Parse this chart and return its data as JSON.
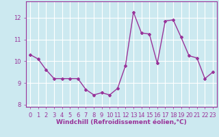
{
  "x": [
    0,
    1,
    2,
    3,
    4,
    5,
    6,
    7,
    8,
    9,
    10,
    11,
    12,
    13,
    14,
    15,
    16,
    17,
    18,
    19,
    20,
    21,
    22,
    23
  ],
  "y": [
    10.3,
    10.1,
    9.6,
    9.2,
    9.2,
    9.2,
    9.2,
    8.7,
    8.45,
    8.55,
    8.45,
    8.75,
    9.8,
    12.25,
    11.3,
    11.25,
    9.9,
    11.85,
    11.9,
    11.1,
    10.25,
    10.15,
    9.2,
    9.5
  ],
  "line_color": "#993399",
  "marker": "D",
  "marker_size": 2.0,
  "linewidth": 1.0,
  "xlabel": "Windchill (Refroidissement éolien,°C)",
  "xlabel_color": "#993399",
  "xlim": [
    -0.5,
    23.5
  ],
  "ylim": [
    7.9,
    12.75
  ],
  "yticks": [
    8,
    9,
    10,
    11,
    12
  ],
  "xticks": [
    0,
    1,
    2,
    3,
    4,
    5,
    6,
    7,
    8,
    9,
    10,
    11,
    12,
    13,
    14,
    15,
    16,
    17,
    18,
    19,
    20,
    21,
    22,
    23
  ],
  "background_color": "#cce9f0",
  "grid_color": "#b0dce8",
  "tick_label_color": "#993399",
  "xlabel_fontsize": 6.5,
  "tick_fontsize": 6.0
}
